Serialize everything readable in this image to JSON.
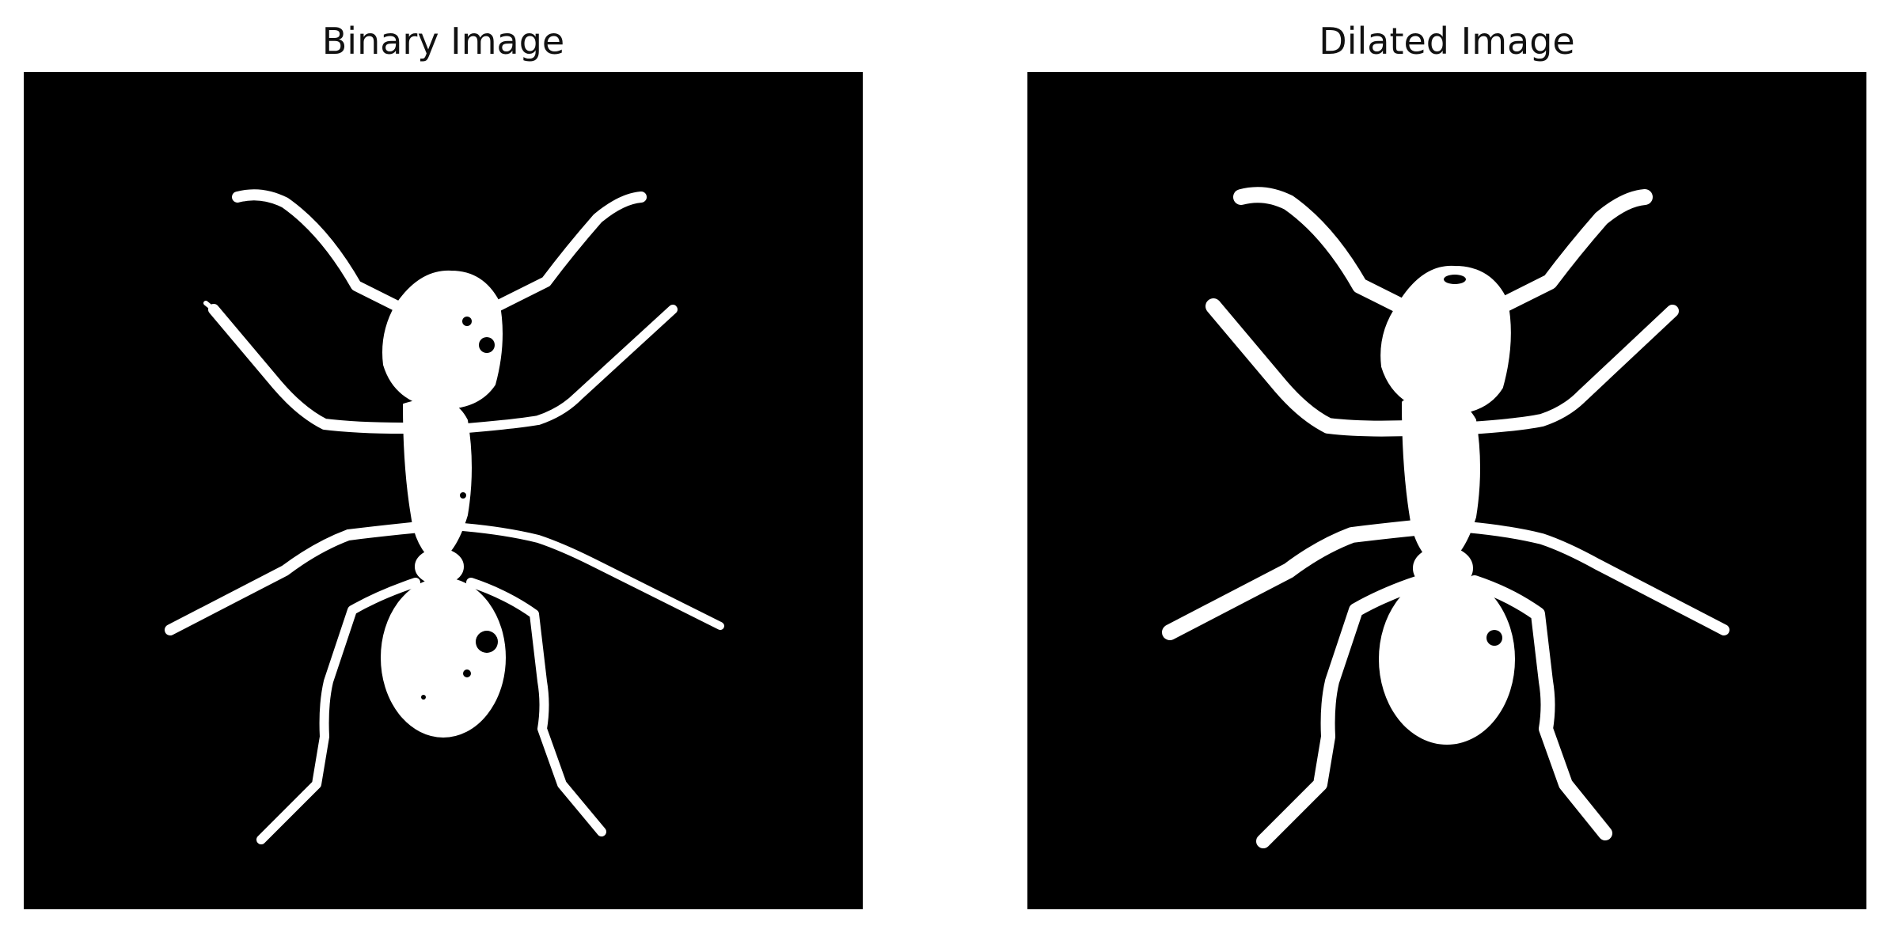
{
  "figure": {
    "panels": [
      {
        "title": "Binary Image",
        "image_description_icon": "ant-silhouette-binary"
      },
      {
        "title": "Dilated Image",
        "image_description_icon": "ant-silhouette-dilated"
      }
    ],
    "colors": {
      "background": "#ffffff",
      "image_background": "#000000",
      "foreground": "#ffffff",
      "title_text": "#111111"
    }
  }
}
